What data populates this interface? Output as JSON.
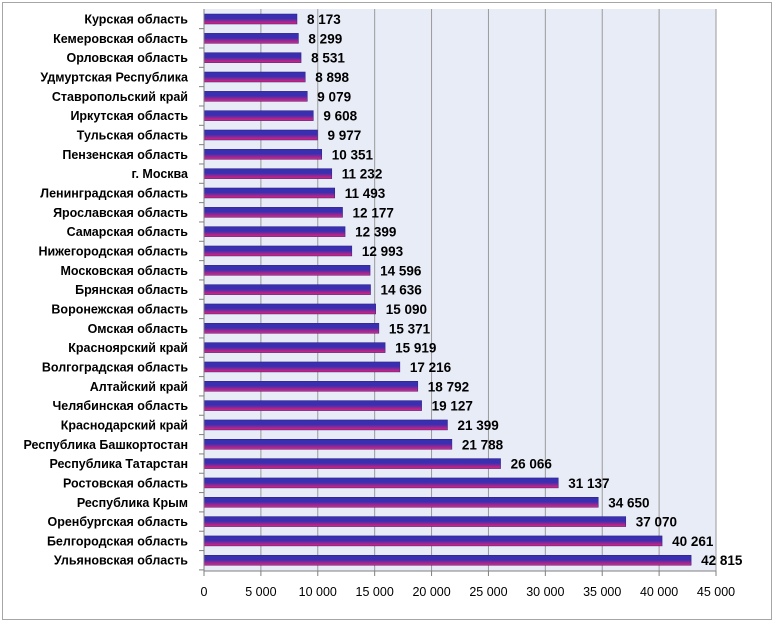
{
  "chart_data": {
    "type": "bar",
    "orientation": "horizontal",
    "categories": [
      "Курская область",
      "Кемеровская область",
      "Орловская область",
      "Удмуртская Республика",
      "Ставропольский край",
      "Иркутская область",
      "Тульская область",
      "Пензенская область",
      "г. Москва",
      "Ленинградская область",
      "Ярославская область",
      "Самарская область",
      "Нижегородская область",
      "Московская область",
      "Брянская область",
      "Воронежская область",
      "Омская область",
      "Красноярский край",
      "Волгоградская область",
      "Алтайский край",
      "Челябинская область",
      "Краснодарский край",
      "Республика Башкортостан",
      "Республика Татарстан",
      "Ростовская область",
      "Республика Крым",
      "Оренбургская область",
      "Белгородская область",
      "Ульяновская область"
    ],
    "values": [
      8173,
      8299,
      8531,
      8898,
      9079,
      9608,
      9977,
      10351,
      11232,
      11493,
      12177,
      12399,
      12993,
      14596,
      14636,
      15090,
      15371,
      15919,
      17216,
      18792,
      19127,
      21399,
      21788,
      26066,
      31137,
      34650,
      37070,
      40261,
      42815
    ],
    "value_labels": [
      "8 173",
      "8 299",
      "8 531",
      "8 898",
      "9 079",
      "9 608",
      "9 977",
      "10 351",
      "11 232",
      "11 493",
      "12 177",
      "12 399",
      "12 993",
      "14 596",
      "14 636",
      "15 090",
      "15 371",
      "15 919",
      "17 216",
      "18 792",
      "19 127",
      "21 399",
      "21 788",
      "26 066",
      "31 137",
      "34 650",
      "37 070",
      "40 261",
      "42 815"
    ],
    "xticks": [
      "0",
      "5 000",
      "10 000",
      "15 000",
      "20 000",
      "25 000",
      "30 000",
      "35 000",
      "40 000",
      "45 000"
    ],
    "xlim": [
      0,
      45000
    ],
    "grid": true,
    "colors": {
      "bar_top": "#3a2fb0",
      "bar_bottom": "#e8207a",
      "plot_bg": "#e8ecf7",
      "grid": "#9a9a9a"
    }
  }
}
